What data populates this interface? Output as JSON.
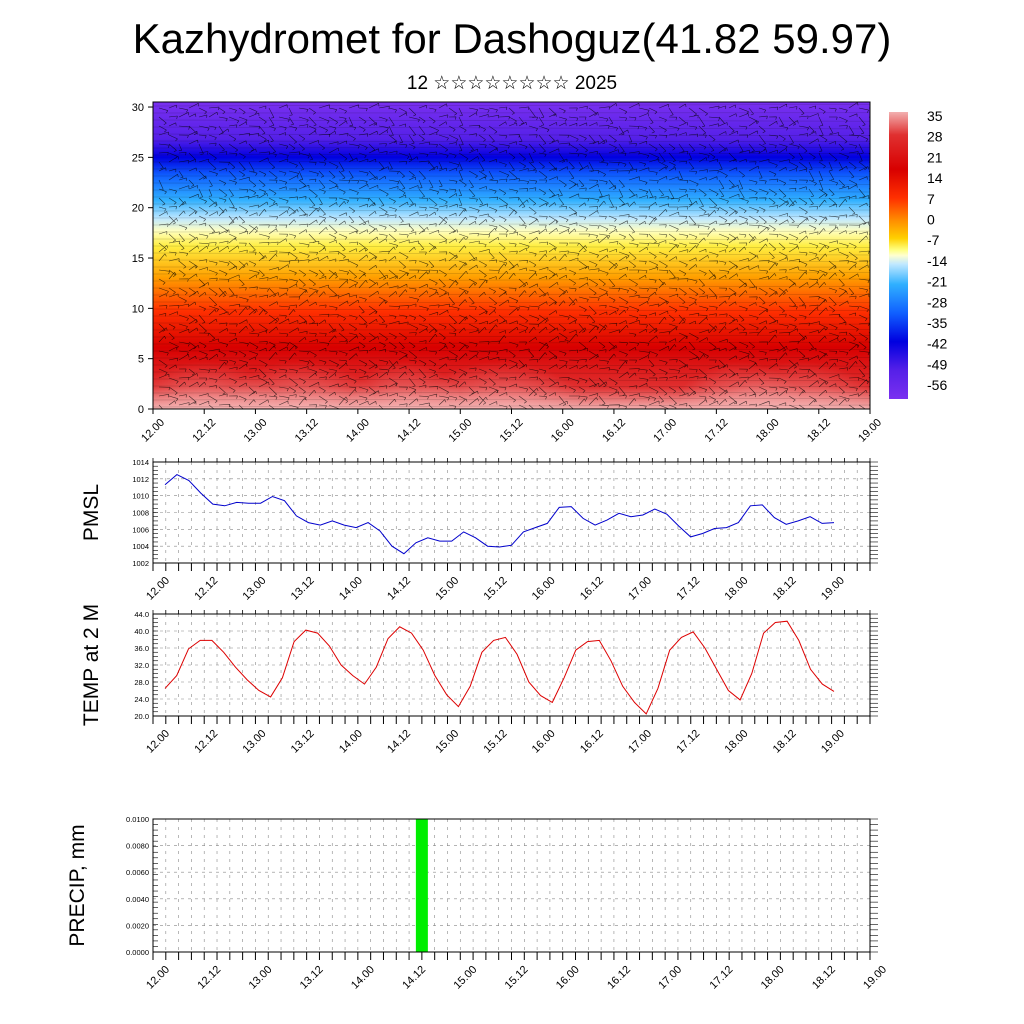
{
  "header": {
    "title": "Kazhydromet for Dashoguz(41.82 59.97)",
    "subtitle": "12 ☆☆☆☆☆☆☆☆ 2025"
  },
  "colors": {
    "pmsl_line": "#0000cc",
    "temp_line": "#dd0000",
    "precip_bar": "#00ee00"
  },
  "chart_data": [
    {
      "type": "heatmap",
      "name": "cross-section",
      "x_ticks": [
        "12.00",
        "12.12",
        "13.00",
        "13.12",
        "14.00",
        "14.12",
        "15.00",
        "15.12",
        "16.00",
        "16.12",
        "17.00",
        "17.12",
        "18.00",
        "18.12",
        "19.00"
      ],
      "y_ticks": [
        "0",
        "5",
        "10",
        "15",
        "20",
        "25",
        "30"
      ],
      "ylim": [
        0,
        30.5
      ],
      "colorbar_labels": [
        "35",
        "28",
        "21",
        "14",
        "7",
        "0",
        "-7",
        "-14",
        "-21",
        "-28",
        "-35",
        "-42",
        "-49",
        "-56"
      ],
      "overlay": "wind barbs"
    },
    {
      "type": "line",
      "ylabel": "PMSL",
      "ylim": [
        1002,
        1014
      ],
      "y_ticks": [
        "1014",
        "1012",
        "1010",
        "1008",
        "1006",
        "1004",
        "1002"
      ],
      "x_ticks": [
        "12.00",
        "12.12",
        "13.00",
        "13.12",
        "14.00",
        "14.12",
        "15.00",
        "15.12",
        "16.00",
        "16.12",
        "17.00",
        "17.12",
        "18.00",
        "18.12",
        "19.00"
      ],
      "values": [
        1011.3,
        1012.5,
        1011.8,
        1010.3,
        1009.0,
        1008.8,
        1009.2,
        1009.1,
        1009.1,
        1009.9,
        1009.4,
        1007.6,
        1006.8,
        1006.5,
        1007.0,
        1006.5,
        1006.2,
        1006.8,
        1005.8,
        1004.0,
        1003.1,
        1004.4,
        1005.0,
        1004.6,
        1004.6,
        1005.7,
        1005.0,
        1004.0,
        1003.9,
        1004.1,
        1005.7,
        1006.2,
        1006.7,
        1008.6,
        1008.7,
        1007.3,
        1006.5,
        1007.1,
        1007.9,
        1007.5,
        1007.7,
        1008.4,
        1007.8,
        1006.4,
        1005.1,
        1005.5,
        1006.1,
        1006.2,
        1006.8,
        1008.8,
        1008.9,
        1007.4,
        1006.6,
        1007.0,
        1007.5,
        1006.7,
        1006.8
      ]
    },
    {
      "type": "line",
      "ylabel": "TEMP at 2 M",
      "ylim": [
        20,
        44
      ],
      "y_ticks": [
        "44.0",
        "40.0",
        "36.0",
        "32.0",
        "28.0",
        "24.0",
        "20.0"
      ],
      "x_ticks": [
        "12.00",
        "12.12",
        "13.00",
        "13.12",
        "14.00",
        "14.12",
        "15.00",
        "15.12",
        "16.00",
        "16.12",
        "17.00",
        "17.12",
        "18.00",
        "18.12",
        "19.00"
      ],
      "values": [
        26.5,
        29.5,
        35.8,
        37.8,
        37.8,
        35.0,
        31.5,
        28.5,
        26.0,
        24.5,
        29.0,
        37.5,
        40.2,
        39.5,
        36.5,
        32.0,
        29.5,
        27.5,
        31.5,
        38.2,
        41.0,
        39.5,
        35.5,
        29.5,
        25.0,
        22.2,
        27.0,
        35.0,
        37.8,
        38.5,
        34.5,
        28.0,
        24.8,
        23.2,
        29.0,
        35.5,
        37.5,
        37.8,
        33.0,
        27.0,
        23.2,
        20.5,
        26.5,
        35.5,
        38.5,
        39.8,
        36.0,
        31.0,
        26.0,
        23.8,
        30.0,
        39.5,
        42.0,
        42.3,
        37.8,
        31.0,
        27.5,
        25.8
      ]
    },
    {
      "type": "bar",
      "ylabel": "PRECIP, mm",
      "ylim": [
        0,
        0.01
      ],
      "y_ticks": [
        "0.0100",
        "0.0080",
        "0.0060",
        "0.0040",
        "0.0020",
        "0.0000"
      ],
      "x_ticks": [
        "12.00",
        "12.12",
        "13.00",
        "13.12",
        "14.00",
        "14.12",
        "15.00",
        "15.12",
        "16.00",
        "16.12",
        "17.00",
        "17.12",
        "18.00",
        "18.12",
        "19.00"
      ],
      "bars": [
        {
          "x_hours": 63,
          "value": 0.01
        }
      ]
    }
  ]
}
